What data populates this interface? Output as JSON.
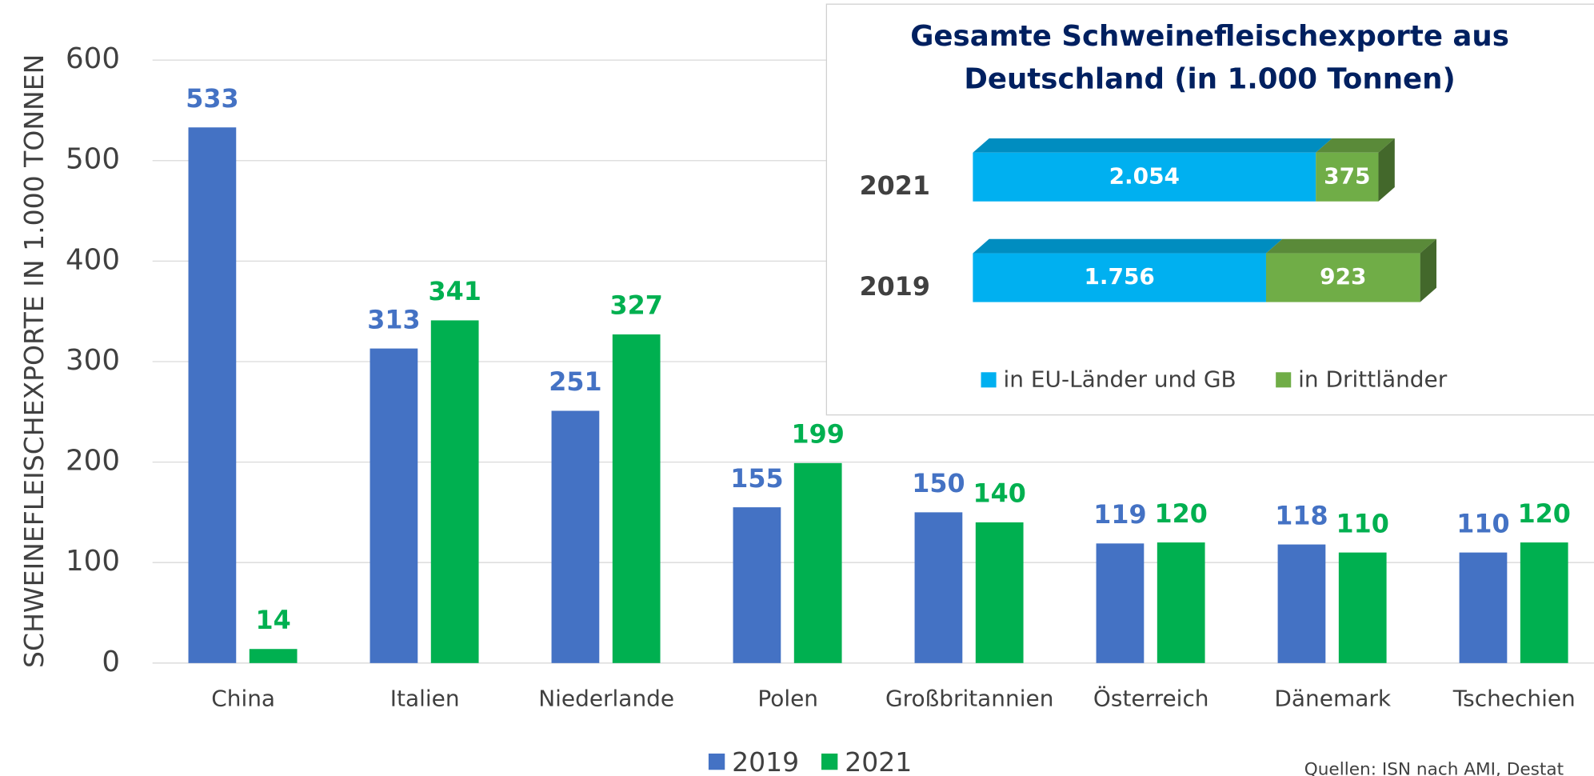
{
  "chart_data": [
    {
      "type": "bar",
      "y_label": "SCHWEINEFLEISCHEXPORTE IN 1.000 TONNEN",
      "categories": [
        "China",
        "Italien",
        "Niederlande",
        "Polen",
        "Großbritannien",
        "Österreich",
        "Dänemark",
        "Tschechien"
      ],
      "series": [
        {
          "name": "2019",
          "color": "#4472c4",
          "values": [
            533,
            313,
            251,
            155,
            150,
            119,
            118,
            110
          ]
        },
        {
          "name": "2021",
          "color": "#00b050",
          "values": [
            14,
            341,
            327,
            199,
            140,
            120,
            110,
            120
          ]
        }
      ],
      "ylim": [
        0,
        600
      ],
      "yticks": [
        0,
        100,
        200,
        300,
        400,
        500,
        600
      ],
      "grid": true,
      "legend": "bottom",
      "source": "Quellen: ISN nach AMI, Destat"
    },
    {
      "type": "stacked_hbar",
      "title": [
        "Gesamte Schweinefleischexporte aus",
        "Deutschland (in 1.000 Tonnen)"
      ],
      "categories": [
        "2021",
        "2019"
      ],
      "series": [
        {
          "name": "in EU-Länder und GB",
          "color": "#00b0f0",
          "values": [
            2054,
            1756
          ],
          "value_labels": [
            "2.054",
            "1.756"
          ]
        },
        {
          "name": "in Drittländer",
          "color": "#70ad47",
          "values": [
            375,
            923
          ]
        }
      ],
      "legend": "bottom"
    }
  ]
}
